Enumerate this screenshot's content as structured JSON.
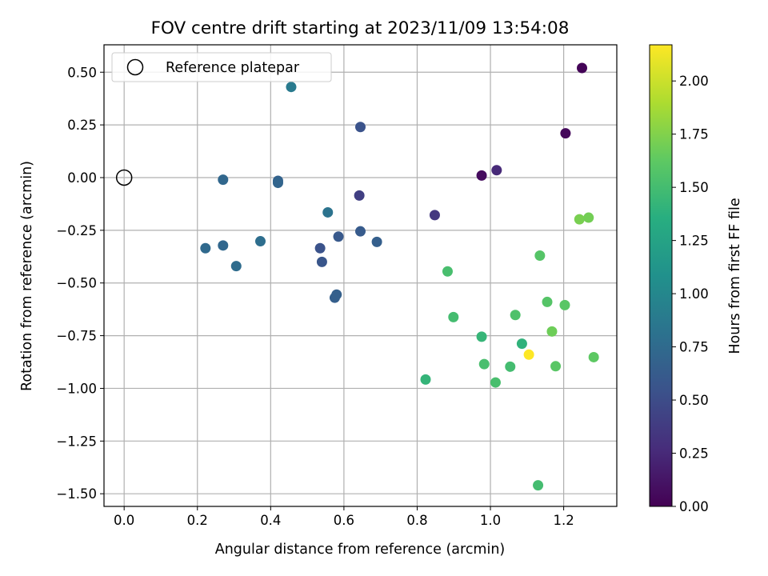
{
  "chart_data": {
    "type": "scatter",
    "title": "FOV centre drift starting at 2023/11/09 13:54:08",
    "xlabel": "Angular distance from reference (arcmin)",
    "ylabel": "Rotation from reference (arcmin)",
    "xlim": [
      -0.055,
      1.345
    ],
    "ylim": [
      -1.56,
      0.63
    ],
    "xticks": [
      0.0,
      0.2,
      0.4,
      0.6,
      0.8,
      1.0,
      1.2
    ],
    "xtick_labels": [
      "0.0",
      "0.2",
      "0.4",
      "0.6",
      "0.8",
      "1.0",
      "1.2"
    ],
    "yticks": [
      0.5,
      0.25,
      0.0,
      -0.25,
      -0.5,
      -0.75,
      -1.0,
      -1.25,
      -1.5
    ],
    "ytick_labels": [
      "0.50",
      "0.25",
      "0.00",
      "−0.25",
      "−0.50",
      "−0.75",
      "−1.00",
      "−1.25",
      "−1.50"
    ],
    "grid": true,
    "legend": {
      "placement": "upper-left",
      "entries": [
        {
          "label": "Reference platepar",
          "marker": "open-circle",
          "x": 0.0,
          "y": 0.0
        }
      ]
    },
    "colorbar": {
      "label": "Hours from first FF file",
      "colormap": "viridis",
      "range": [
        0.0,
        2.17
      ],
      "ticks": [
        0.0,
        0.25,
        0.5,
        0.75,
        1.0,
        1.25,
        1.5,
        1.75,
        2.0
      ],
      "tick_labels": [
        "0.00",
        "0.25",
        "0.50",
        "0.75",
        "1.00",
        "1.25",
        "1.50",
        "1.75",
        "2.00"
      ]
    },
    "points": [
      {
        "x": 1.25,
        "y": 0.52,
        "c": 0.02
      },
      {
        "x": 1.205,
        "y": 0.21,
        "c": 0.05
      },
      {
        "x": 0.976,
        "y": 0.01,
        "c": 0.07
      },
      {
        "x": 1.017,
        "y": 0.035,
        "c": 0.25
      },
      {
        "x": 0.848,
        "y": -0.178,
        "c": 0.35
      },
      {
        "x": 0.642,
        "y": -0.085,
        "c": 0.4
      },
      {
        "x": 0.645,
        "y": 0.24,
        "c": 0.55
      },
      {
        "x": 0.535,
        "y": -0.335,
        "c": 0.55
      },
      {
        "x": 0.54,
        "y": -0.4,
        "c": 0.58
      },
      {
        "x": 0.645,
        "y": -0.255,
        "c": 0.62
      },
      {
        "x": 0.585,
        "y": -0.28,
        "c": 0.6
      },
      {
        "x": 0.69,
        "y": -0.305,
        "c": 0.65
      },
      {
        "x": 0.575,
        "y": -0.57,
        "c": 0.65
      },
      {
        "x": 0.58,
        "y": -0.555,
        "c": 0.66
      },
      {
        "x": 0.42,
        "y": -0.015,
        "c": 0.68
      },
      {
        "x": 0.42,
        "y": -0.025,
        "c": 0.7
      },
      {
        "x": 0.27,
        "y": -0.01,
        "c": 0.72
      },
      {
        "x": 0.222,
        "y": -0.335,
        "c": 0.74
      },
      {
        "x": 0.27,
        "y": -0.322,
        "c": 0.72
      },
      {
        "x": 0.306,
        "y": -0.42,
        "c": 0.76
      },
      {
        "x": 0.372,
        "y": -0.302,
        "c": 0.78
      },
      {
        "x": 0.556,
        "y": -0.165,
        "c": 0.82
      },
      {
        "x": 0.456,
        "y": 0.43,
        "c": 0.88
      },
      {
        "x": 0.823,
        "y": -0.958,
        "c": 1.42
      },
      {
        "x": 0.976,
        "y": -0.755,
        "c": 1.43
      },
      {
        "x": 1.086,
        "y": -0.788,
        "c": 1.4
      },
      {
        "x": 0.883,
        "y": -0.445,
        "c": 1.52
      },
      {
        "x": 0.899,
        "y": -0.662,
        "c": 1.5
      },
      {
        "x": 0.983,
        "y": -0.885,
        "c": 1.52
      },
      {
        "x": 1.014,
        "y": -0.972,
        "c": 1.52
      },
      {
        "x": 1.054,
        "y": -0.897,
        "c": 1.5
      },
      {
        "x": 1.068,
        "y": -0.652,
        "c": 1.55
      },
      {
        "x": 1.13,
        "y": -1.46,
        "c": 1.5
      },
      {
        "x": 1.135,
        "y": -0.37,
        "c": 1.58
      },
      {
        "x": 1.155,
        "y": -0.59,
        "c": 1.58
      },
      {
        "x": 1.168,
        "y": -0.73,
        "c": 1.68
      },
      {
        "x": 1.178,
        "y": -0.895,
        "c": 1.6
      },
      {
        "x": 1.203,
        "y": -0.605,
        "c": 1.6
      },
      {
        "x": 1.243,
        "y": -0.198,
        "c": 1.72
      },
      {
        "x": 1.268,
        "y": -0.19,
        "c": 1.7
      },
      {
        "x": 1.282,
        "y": -0.852,
        "c": 1.62
      },
      {
        "x": 1.105,
        "y": -0.84,
        "c": 2.17
      }
    ]
  }
}
